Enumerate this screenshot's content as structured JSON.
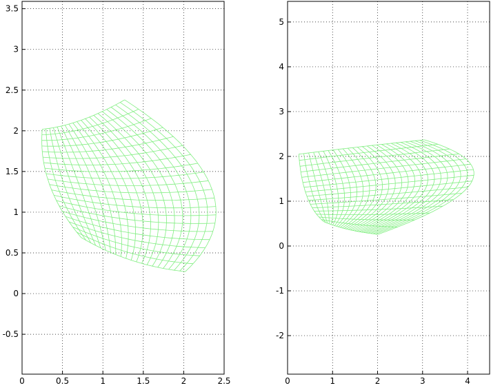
{
  "chart_data": [
    {
      "type": "mesh",
      "color": "#80ee80",
      "grid": true,
      "xlim": [
        0,
        2.5
      ],
      "ylim": [
        -0.99,
        3.59
      ],
      "xticks": [
        0,
        0.5,
        1,
        1.5,
        2,
        2.5
      ],
      "yticks": [
        -0.5,
        0,
        0.5,
        1,
        1.5,
        2,
        2.5,
        3,
        3.5
      ],
      "rows": 20,
      "cols": 20,
      "corners": [
        [
          0.25,
          2.02
        ],
        [
          1.27,
          2.38
        ],
        [
          2.02,
          0.27
        ],
        [
          0.73,
          0.69
        ]
      ],
      "edge_mids": [
        [
          0.73,
          2.13
        ],
        [
          2.35,
          1.28
        ],
        [
          1.35,
          0.41
        ],
        [
          0.34,
          1.34
        ]
      ]
    },
    {
      "type": "mesh",
      "color": "#80ee80",
      "grid": true,
      "xlim": [
        0,
        4.49
      ],
      "ylim": [
        -2.86,
        5.46
      ],
      "xticks": [
        0,
        1,
        2,
        3,
        4
      ],
      "yticks": [
        -2,
        -1,
        0,
        1,
        2,
        3,
        4,
        5
      ],
      "rows": 16,
      "cols": 26,
      "corners": [
        [
          0.25,
          2.05
        ],
        [
          3.04,
          2.37
        ],
        [
          2.01,
          0.26
        ],
        [
          0.81,
          0.54
        ]
      ],
      "edge_mids": [
        [
          1.66,
          2.22
        ],
        [
          4.1,
          1.45
        ],
        [
          1.35,
          0.37
        ],
        [
          0.43,
          1.11
        ]
      ]
    }
  ]
}
